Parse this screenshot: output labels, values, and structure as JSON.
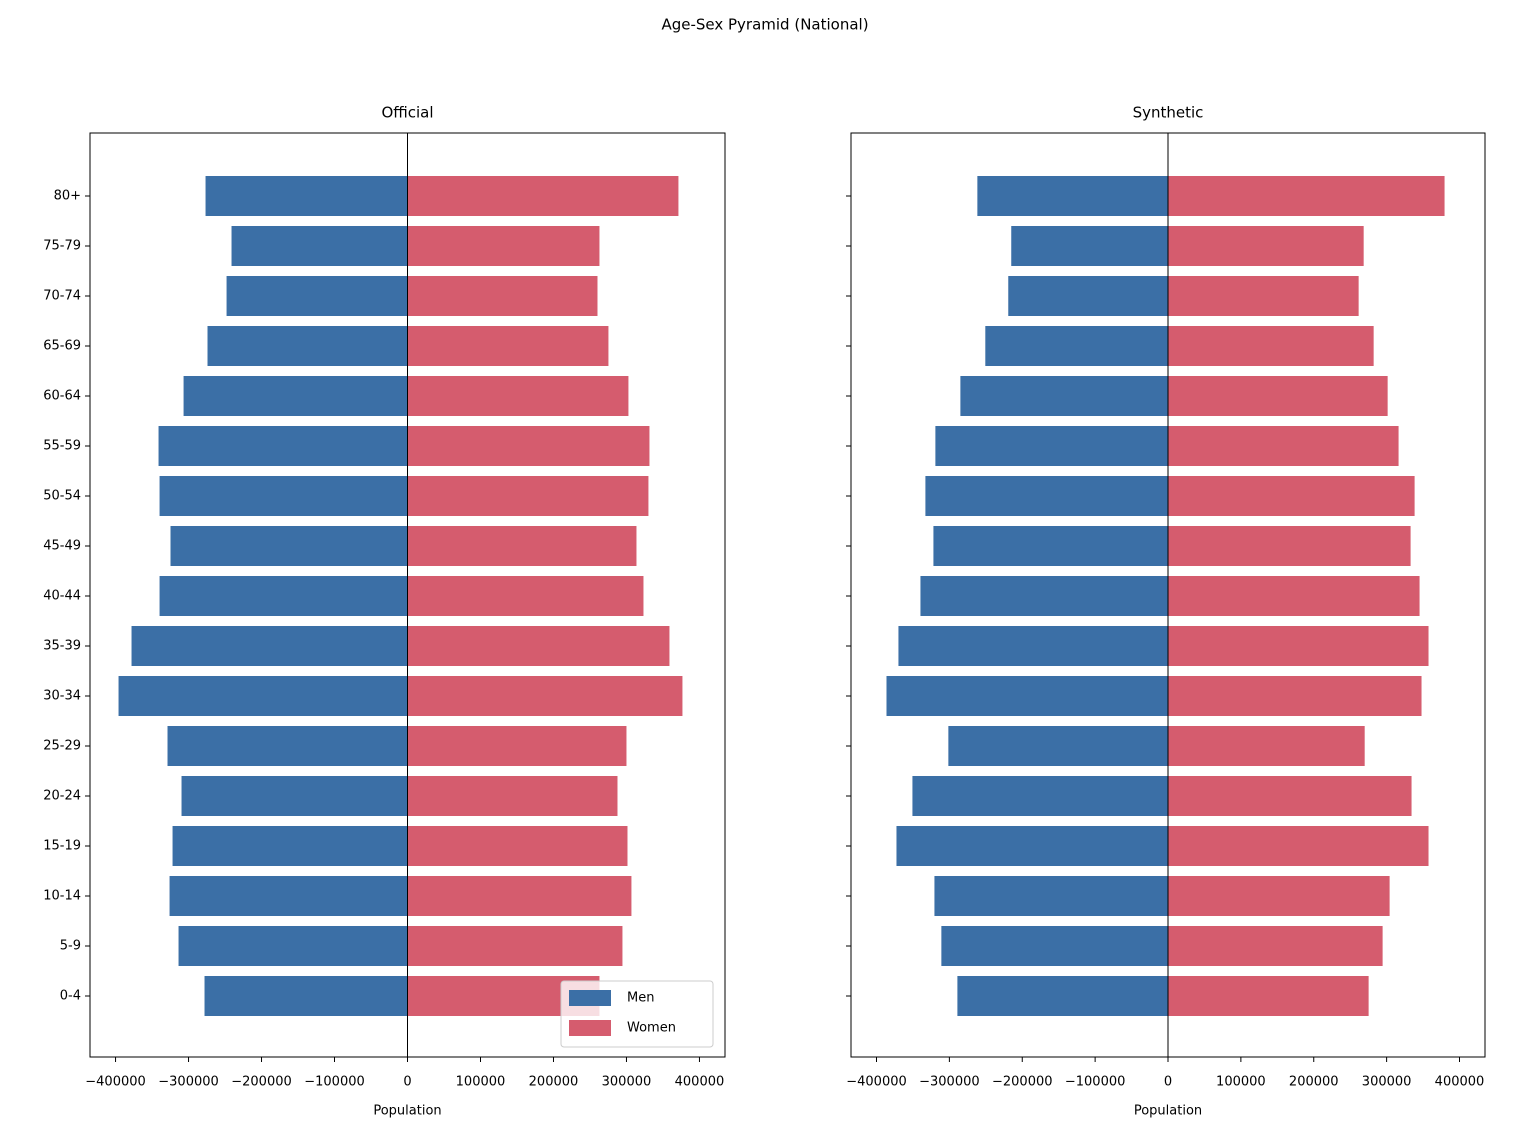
{
  "title": "Age-Sex Pyramid (National)",
  "chart_data": [
    {
      "type": "bar",
      "orientation": "horizontal",
      "title": "Official",
      "xlabel": "Population",
      "categories": [
        "0-4",
        "5-9",
        "10-14",
        "15-19",
        "20-24",
        "25-29",
        "30-34",
        "35-39",
        "40-44",
        "45-49",
        "50-54",
        "55-59",
        "60-64",
        "65-69",
        "70-74",
        "75-79",
        "80+"
      ],
      "series": [
        {
          "name": "Men",
          "color": "#3b6fa6",
          "values": [
            -278100,
            -313700,
            -326000,
            -321900,
            -309600,
            -328800,
            -395900,
            -378100,
            -339700,
            -324700,
            -339700,
            -341100,
            -306800,
            -274000,
            -247900,
            -241100,
            -276700
          ]
        },
        {
          "name": "Women",
          "color": "#d55c6e",
          "values": [
            263000,
            294500,
            306800,
            301400,
            287700,
            300000,
            376700,
            358900,
            323300,
            313700,
            330100,
            331500,
            302700,
            275300,
            260300,
            263000,
            371200
          ]
        }
      ],
      "xlim": [
        -435000,
        435000
      ],
      "xticks": [
        {
          "value": -400000,
          "label": "−400000"
        },
        {
          "value": -300000,
          "label": "−300000"
        },
        {
          "value": -200000,
          "label": "−200000"
        },
        {
          "value": -100000,
          "label": "−100000"
        },
        0,
        100000,
        200000,
        300000,
        400000
      ],
      "legend": "lower right"
    },
    {
      "type": "bar",
      "orientation": "horizontal",
      "title": "Synthetic",
      "xlabel": "Population",
      "series": [
        {
          "color": "#3b6fa6",
          "values": [
            -289000,
            -311000,
            -320500,
            -372600,
            -350700,
            -301400,
            -386300,
            -369900,
            -339700,
            -321900,
            -332900,
            -319200,
            -284900,
            -250700,
            -219200,
            -215100,
            -261600
          ]
        },
        {
          "color": "#d55c6e",
          "values": [
            275300,
            294500,
            304100,
            357500,
            334200,
            269900,
            347900,
            357500,
            345200,
            332900,
            338400,
            316400,
            301400,
            282200,
            261600,
            268500,
            379500
          ]
        }
      ],
      "xlim": [
        -435000,
        435000
      ],
      "xticks": [
        {
          "value": -400000,
          "label": "−400000"
        },
        {
          "value": -300000,
          "label": "−300000"
        },
        {
          "value": -200000,
          "label": "−200000"
        },
        {
          "value": -100000,
          "label": "−100000"
        },
        0,
        100000,
        200000,
        300000,
        400000
      ]
    }
  ]
}
